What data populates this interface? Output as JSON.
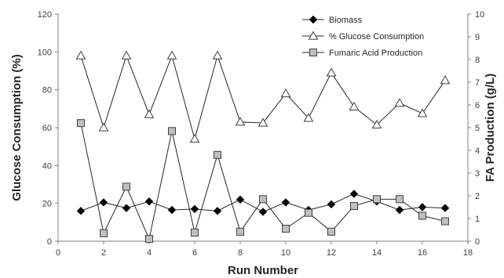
{
  "chart_data": {
    "type": "line",
    "title": "",
    "xlabel": "Run Number",
    "ylabel_left": "Glucose Consumption (%)",
    "ylabel_right": "FA Production (g/L)",
    "xlim": [
      0,
      18
    ],
    "ylim_left": [
      0,
      120
    ],
    "ylim_right": [
      0,
      10
    ],
    "x_ticks": [
      0,
      2,
      4,
      6,
      8,
      10,
      12,
      14,
      16,
      18
    ],
    "y_left_ticks": [
      0,
      20,
      40,
      60,
      80,
      100,
      120
    ],
    "y_right_ticks": [
      0,
      1,
      2,
      3,
      4,
      5,
      6,
      7,
      8,
      9,
      10
    ],
    "grid": false,
    "legend_position": "top-right",
    "x": [
      1,
      2,
      3,
      4,
      5,
      6,
      7,
      8,
      9,
      10,
      11,
      12,
      13,
      14,
      15,
      16,
      17
    ],
    "series": [
      {
        "name": "Biomass",
        "axis": "left",
        "marker": "diamond",
        "color": "#000000",
        "values": [
          16,
          20.5,
          17.5,
          21,
          16.5,
          17,
          16,
          22,
          15.5,
          20.5,
          16.5,
          19.5,
          25,
          21,
          16.5,
          18,
          17.5
        ]
      },
      {
        "name": "% Glucose Consumption",
        "axis": "left",
        "marker": "triangle-open",
        "color": "#404040",
        "values": [
          98,
          60,
          98,
          67,
          98,
          54,
          98,
          63,
          62.5,
          78,
          65,
          89,
          71,
          61.5,
          73,
          67.5,
          85
        ]
      },
      {
        "name": "Fumaric Acid Production",
        "axis": "right",
        "marker": "square",
        "color": "#a6a6a6",
        "values": [
          5.2,
          0.35,
          2.4,
          0.1,
          4.85,
          0.38,
          3.8,
          0.42,
          1.85,
          0.55,
          1.25,
          0.42,
          1.55,
          1.85,
          1.85,
          1.12,
          0.88
        ]
      }
    ]
  }
}
